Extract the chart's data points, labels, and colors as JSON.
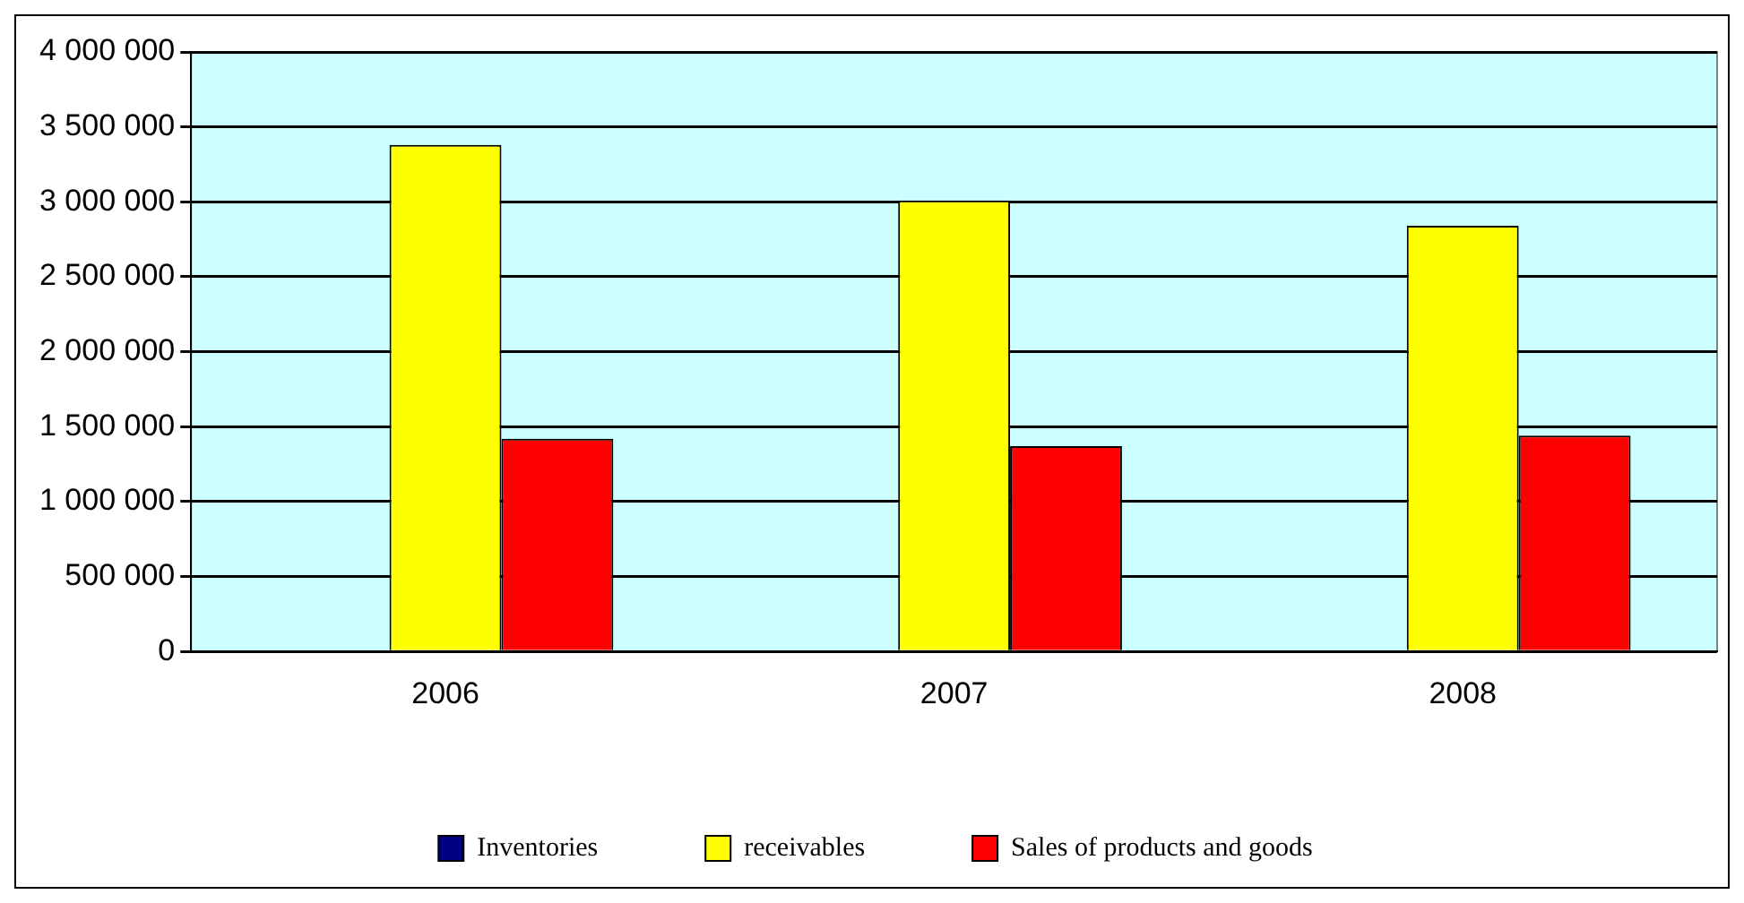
{
  "chart_data": {
    "type": "bar",
    "categories": [
      "2006",
      "2007",
      "2008"
    ],
    "series": [
      {
        "name": "Inventories",
        "color": "#000080",
        "values": [
          null,
          null,
          null
        ]
      },
      {
        "name": "receivables",
        "color": "#ffff00",
        "values": [
          3380000,
          3010000,
          2840000
        ]
      },
      {
        "name": "Sales of products and goods",
        "color": "#ff0000",
        "values": [
          1420000,
          1370000,
          1440000
        ]
      }
    ],
    "ylim": [
      0,
      4000000
    ],
    "yticks": [
      0,
      {
        "value": 500000,
        "label": "500 000"
      },
      {
        "value": 1000000,
        "label": "1 000 000"
      },
      {
        "value": 1500000,
        "label": "1 500 000"
      },
      {
        "value": 2000000,
        "label": "2 000 000"
      },
      {
        "value": 2500000,
        "label": "2 500 000"
      },
      {
        "value": 3000000,
        "label": "3 000 000"
      },
      {
        "value": 3500000,
        "label": "3 500 000"
      },
      {
        "value": 4000000,
        "label": "4 000 000"
      }
    ],
    "grid": "y",
    "legend": "bottom"
  }
}
